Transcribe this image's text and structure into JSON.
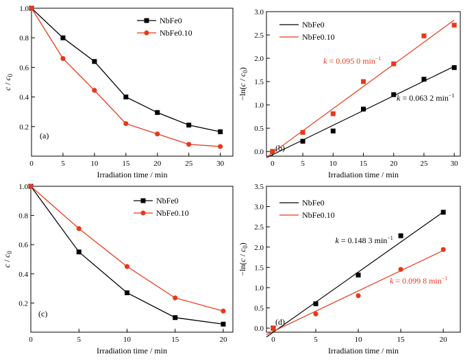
{
  "chart_data": [
    {
      "id": "a",
      "type": "line",
      "panel_label": "(a)",
      "xlabel": "Irradiation time / min",
      "ylabel_main": "c",
      "ylabel_sep": " / ",
      "ylabel_sub_base": "c",
      "ylabel_sub": "0",
      "xlim": [
        0,
        32
      ],
      "ylim": [
        0,
        1.0
      ],
      "xticks": [
        0,
        5,
        10,
        15,
        20,
        25,
        30
      ],
      "yticks": [
        0.2,
        0.4,
        0.6,
        0.8,
        1.0
      ],
      "ytick_labels": [
        "0.2",
        "0.4",
        "0.6",
        "0.8",
        "1.0"
      ],
      "legend_position": "top-right",
      "series": [
        {
          "name": "NbFe0",
          "color": "#000000",
          "marker": "square",
          "x": [
            0,
            5,
            10,
            15,
            20,
            25,
            30
          ],
          "y": [
            1.0,
            0.8,
            0.64,
            0.4,
            0.295,
            0.21,
            0.165
          ]
        },
        {
          "name": "NbFe0.10",
          "color": "#e8391a",
          "marker": "circle",
          "x": [
            0,
            5,
            10,
            15,
            20,
            25,
            30
          ],
          "y": [
            1.0,
            0.66,
            0.445,
            0.22,
            0.15,
            0.08,
            0.065
          ]
        }
      ]
    },
    {
      "id": "b",
      "type": "scatter",
      "panel_label": "(b)",
      "xlabel": "Irradiation time / min",
      "ylabel_main": "−ln(c",
      "ylabel_sep": " / ",
      "ylabel_sub_base": "c",
      "ylabel_sub": "0",
      "ylabel_end": ")",
      "xlim": [
        -1,
        31
      ],
      "ylim": [
        -0.1,
        3.0
      ],
      "xticks": [
        0,
        5,
        10,
        15,
        20,
        25,
        30
      ],
      "yticks": [
        0.0,
        0.5,
        1.0,
        1.5,
        2.0,
        2.5,
        3.0
      ],
      "ytick_labels": [
        "0.0",
        "0.5",
        "1.0",
        "1.5",
        "2.0",
        "2.5",
        "3.0"
      ],
      "legend_position": "top-left",
      "series": [
        {
          "name": "NbFe0",
          "color": "#000000",
          "marker": "square",
          "x": [
            0,
            5,
            10,
            15,
            20,
            25,
            30
          ],
          "y": [
            0.0,
            0.22,
            0.44,
            0.91,
            1.22,
            1.55,
            1.8
          ],
          "fit_k": 0.0632,
          "fit_b": -0.07,
          "fit_x": [
            -1,
            30
          ]
        },
        {
          "name": "NbFe0.10",
          "color": "#e8391a",
          "marker": "square",
          "x": [
            0,
            5,
            10,
            15,
            20,
            25,
            30
          ],
          "y": [
            0.0,
            0.41,
            0.81,
            1.5,
            1.88,
            2.48,
            2.71
          ],
          "fit_k": 0.095,
          "fit_b": -0.03,
          "fit_x": [
            -1,
            30
          ]
        }
      ],
      "annotations": [
        {
          "prefix": "k",
          "text": " = 0.095 0 min",
          "sup": "−1",
          "color": "#e8391a",
          "x": 8.4,
          "y": 1.88
        },
        {
          "prefix": "k",
          "text": " = 0.063 2 min",
          "sup": "−1",
          "color": "#000000",
          "x": 20.5,
          "y": 1.09
        }
      ]
    },
    {
      "id": "c",
      "type": "line",
      "panel_label": "(c)",
      "xlabel": "Irradiation time / min",
      "ylabel_main": "c",
      "ylabel_sep": " / ",
      "ylabel_sub_base": "c",
      "ylabel_sub": "0",
      "xlim": [
        0,
        21
      ],
      "ylim": [
        0,
        1.0
      ],
      "xticks": [
        0,
        5,
        10,
        15,
        20
      ],
      "yticks": [
        0.2,
        0.4,
        0.6,
        0.8,
        1.0
      ],
      "ytick_labels": [
        "0.2",
        "0.4",
        "0.6",
        "0.8",
        "1.0"
      ],
      "legend_position": "top-right",
      "series": [
        {
          "name": "NbFe0",
          "color": "#000000",
          "marker": "square",
          "x": [
            0,
            5,
            10,
            15,
            20
          ],
          "y": [
            1.0,
            0.55,
            0.27,
            0.1,
            0.055
          ]
        },
        {
          "name": "NbFe0.10",
          "color": "#e8391a",
          "marker": "circle",
          "x": [
            0,
            5,
            10,
            15,
            20
          ],
          "y": [
            1.0,
            0.71,
            0.45,
            0.235,
            0.145
          ]
        }
      ]
    },
    {
      "id": "d",
      "type": "scatter",
      "panel_label": "(d)",
      "xlabel": "Irradiation time / min",
      "ylabel_main": "−ln(c",
      "ylabel_sep": " / ",
      "ylabel_sub_base": "c",
      "ylabel_sub": "0",
      "ylabel_end": ")",
      "xlim": [
        -0.8,
        22
      ],
      "ylim": [
        -0.1,
        3.5
      ],
      "xticks": [
        0,
        5,
        10,
        15,
        20
      ],
      "yticks": [
        0.0,
        0.5,
        1.0,
        1.5,
        2.0,
        2.5,
        3.0,
        3.5
      ],
      "ytick_labels": [
        "0.0",
        "0.5",
        "1.0",
        "1.5",
        "2.0",
        "2.5",
        "3.0",
        "3.5"
      ],
      "legend_position": "top-left",
      "series": [
        {
          "name": "NbFe0",
          "color": "#000000",
          "marker": "square",
          "x": [
            0,
            5,
            10,
            15,
            20
          ],
          "y": [
            0.0,
            0.6,
            1.31,
            2.28,
            2.86
          ],
          "fit_k": 0.1483,
          "fit_b": -0.1,
          "fit_x": [
            -0.8,
            20
          ]
        },
        {
          "name": "NbFe0.10",
          "color": "#e8391a",
          "marker": "circle",
          "x": [
            0,
            5,
            10,
            15,
            20
          ],
          "y": [
            0.0,
            0.35,
            0.8,
            1.45,
            1.94
          ],
          "fit_k": 0.0998,
          "fit_b": -0.08,
          "fit_x": [
            -0.8,
            20
          ]
        }
      ],
      "annotations": [
        {
          "prefix": "k",
          "text": " = 0.148 3 min",
          "sup": "−1",
          "color": "#000000",
          "x": 7.3,
          "y": 2.1
        },
        {
          "prefix": "k",
          "text": " = 0.099 8 min",
          "sup": "−1",
          "color": "#e8391a",
          "x": 13.7,
          "y": 1.1
        }
      ]
    }
  ]
}
